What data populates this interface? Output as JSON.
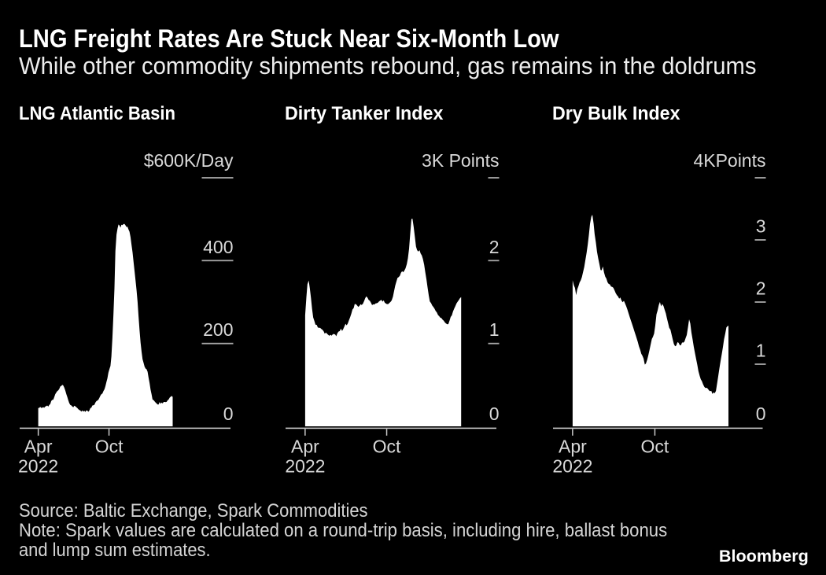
{
  "header": {
    "title": "LNG Freight Rates Are Stuck Near Six-Month Low",
    "subtitle": "While other commodity shipments rebound, gas remains in the doldrums"
  },
  "footer": {
    "source": "Source: Baltic Exchange, Spark Commodities",
    "note_line1": "Note: Spark values are calculated on a round-trip basis, including hire, ballast bonus",
    "note_line2": "and lump sum estimates.",
    "brand": "Bloomberg"
  },
  "colors": {
    "background": "#000000",
    "area_fill": "#ffffff",
    "title": "#ffffff",
    "subtitle": "#ededed",
    "panel_title": "#ffffff",
    "axis_label": "#d9d9d9",
    "axis_line": "#c9c9c9",
    "tick_dash": "#a8a8a8",
    "footer_text": "#d4d4d4",
    "brand_text": "#ffffff"
  },
  "chart_data": [
    {
      "type": "area",
      "title": "LNG Atlantic Basin",
      "unit_label": "$600K/Day",
      "ylabel": "$K/Day",
      "ylim": [
        0,
        600
      ],
      "yticks": [
        {
          "value": 600,
          "label": "$600K/Day",
          "is_unit": true
        },
        {
          "value": 400,
          "label": "400"
        },
        {
          "value": 200,
          "label": "200"
        },
        {
          "value": 0,
          "label": "0"
        }
      ],
      "xticks": [
        {
          "month": 0,
          "lines": [
            "Apr",
            "2022"
          ]
        },
        {
          "month": 6,
          "lines": [
            "Oct"
          ]
        }
      ],
      "x_unit": "months since Apr 2022",
      "x": [
        0,
        0.09,
        0.17,
        0.26,
        0.34,
        0.43,
        0.51,
        0.59,
        0.68,
        0.76,
        0.85,
        0.93,
        1.02,
        1.1,
        1.19,
        1.27,
        1.36,
        1.44,
        1.53,
        1.61,
        1.7,
        1.78,
        1.87,
        1.95,
        2.04,
        2.12,
        2.21,
        2.29,
        2.38,
        2.46,
        2.55,
        2.63,
        2.72,
        2.8,
        2.89,
        2.97,
        3.06,
        3.14,
        3.23,
        3.31,
        3.4,
        3.48,
        3.57,
        3.65,
        3.74,
        3.82,
        3.91,
        3.99,
        4.08,
        4.16,
        4.25,
        4.33,
        4.42,
        4.5,
        4.59,
        4.67,
        4.76,
        4.84,
        4.93,
        5.01,
        5.1,
        5.18,
        5.27,
        5.35,
        5.44,
        5.52,
        5.61,
        5.69,
        5.78,
        5.86,
        5.95,
        6.03,
        6.12,
        6.2,
        6.29,
        6.37,
        6.46,
        6.54,
        6.63,
        6.71,
        6.8,
        6.88,
        6.97,
        7.05,
        7.14,
        7.22,
        7.31,
        7.39,
        7.48,
        7.56,
        7.65,
        7.73,
        7.82,
        7.9,
        7.99,
        8.07,
        8.16,
        8.24,
        8.33,
        8.42,
        8.5,
        8.59,
        8.67,
        8.76,
        8.84,
        8.93,
        9.01,
        9.1,
        9.18,
        9.27,
        9.35,
        9.44,
        9.52,
        9.61,
        9.69,
        9.78,
        9.86,
        9.95,
        10.03,
        10.12,
        10.2,
        10.29,
        10.37,
        10.46,
        10.54,
        10.63,
        10.71,
        10.8,
        10.88,
        10.97,
        11.05,
        11.14,
        11.22,
        11.31,
        11.39
      ],
      "values": [
        44.0,
        44.6,
        47.1,
        44.5,
        45.0,
        46.2,
        44.9,
        47.7,
        49.0,
        50.3,
        47.7,
        51.4,
        54.0,
        60.9,
        63.9,
        63.9,
        70.7,
        77.3,
        81.5,
        85.1,
        87.0,
        90.2,
        96.2,
        97.2,
        100.2,
        98.8,
        93.0,
        86.4,
        77.8,
        71.2,
        62.9,
        56.2,
        51.4,
        50.5,
        47.7,
        46.2,
        49.9,
        48.4,
        46.0,
        44.3,
        41.3,
        39.5,
        38.1,
        35.3,
        38.4,
        35.5,
        37.5,
        34.5,
        38.4,
        37.9,
        35.2,
        38.1,
        44.0,
        44.9,
        50.3,
        50.9,
        52.1,
        57.2,
        60.8,
        62.0,
        64.4,
        68.6,
        74.3,
        77.3,
        79.1,
        84.7,
        89.5,
        96.8,
        107.1,
        115.6,
        129.6,
        138.0,
        145.7,
        168.7,
        213.7,
        270.3,
        334.1,
        422.9,
        462.7,
        476.4,
        487.3,
        485.1,
        479.6,
        486.6,
        485.5,
        488.1,
        488.4,
        485.5,
        481.2,
        482.0,
        475.5,
        470.0,
        457.0,
        439.3,
        419.8,
        398.2,
        375.3,
        353.9,
        328.2,
        300.2,
        265.8,
        231.9,
        202.0,
        179.6,
        162.1,
        153.3,
        144.1,
        139.4,
        137.8,
        132.0,
        118.3,
        103.7,
        88.5,
        77.0,
        64.7,
        63.1,
        60.4,
        57.6,
        55.3,
        52.7,
        52.6,
        58.6,
        54.5,
        57.6,
        55.2,
        58.8,
        58.8,
        58.4,
        59.1,
        63.0,
        64.5,
        69.3,
        71.4,
        73.3,
        71
      ]
    },
    {
      "type": "area",
      "title": "Dirty Tanker Index",
      "unit_label": "3K Points",
      "ylabel": "K Points",
      "ylim": [
        0,
        3
      ],
      "yticks": [
        {
          "value": 3,
          "label": "3K Points",
          "is_unit": true
        },
        {
          "value": 2,
          "label": "2"
        },
        {
          "value": 1,
          "label": "1"
        },
        {
          "value": 0,
          "label": "0"
        }
      ],
      "xticks": [
        {
          "month": 0,
          "lines": [
            "Apr",
            "2022"
          ]
        },
        {
          "month": 6,
          "lines": [
            "Oct"
          ]
        }
      ],
      "x_unit": "months since Apr 2022",
      "x": [
        0,
        0.09,
        0.17,
        0.26,
        0.34,
        0.43,
        0.51,
        0.59,
        0.68,
        0.76,
        0.85,
        0.93,
        1.02,
        1.1,
        1.19,
        1.27,
        1.36,
        1.44,
        1.53,
        1.61,
        1.7,
        1.78,
        1.87,
        1.95,
        2.04,
        2.12,
        2.21,
        2.29,
        2.38,
        2.46,
        2.55,
        2.63,
        2.72,
        2.8,
        2.89,
        2.97,
        3.06,
        3.14,
        3.23,
        3.31,
        3.4,
        3.48,
        3.57,
        3.65,
        3.74,
        3.82,
        3.91,
        3.99,
        4.08,
        4.16,
        4.25,
        4.33,
        4.42,
        4.5,
        4.59,
        4.67,
        4.76,
        4.84,
        4.93,
        5.01,
        5.1,
        5.18,
        5.27,
        5.35,
        5.44,
        5.52,
        5.61,
        5.69,
        5.78,
        5.86,
        5.95,
        6.03,
        6.12,
        6.2,
        6.29,
        6.37,
        6.46,
        6.54,
        6.63,
        6.71,
        6.8,
        6.88,
        6.97,
        7.05,
        7.14,
        7.22,
        7.31,
        7.39,
        7.48,
        7.56,
        7.65,
        7.73,
        7.82,
        7.9,
        7.99,
        8.07,
        8.16,
        8.24,
        8.33,
        8.42,
        8.5,
        8.59,
        8.67,
        8.76,
        8.84,
        8.93,
        9.01,
        9.1,
        9.18,
        9.27,
        9.35,
        9.44,
        9.52,
        9.61,
        9.69,
        9.78,
        9.86,
        9.95,
        10.03,
        10.12,
        10.2,
        10.29,
        10.37,
        10.46,
        10.54,
        10.63,
        10.71,
        10.8,
        10.88,
        10.97,
        11.05,
        11.14,
        11.22,
        11.31,
        11.39,
        11.48,
        11.48
      ],
      "values": [
        1.34,
        1.562,
        1.715,
        1.76,
        1.668,
        1.55,
        1.418,
        1.315,
        1.272,
        1.227,
        1.225,
        1.193,
        1.188,
        1.19,
        1.175,
        1.167,
        1.148,
        1.117,
        1.133,
        1.118,
        1.103,
        1.093,
        1.105,
        1.095,
        1.112,
        1.115,
        1.108,
        1.087,
        1.126,
        1.144,
        1.15,
        1.18,
        1.151,
        1.173,
        1.206,
        1.238,
        1.219,
        1.242,
        1.283,
        1.318,
        1.36,
        1.409,
        1.428,
        1.476,
        1.473,
        1.46,
        1.442,
        1.453,
        1.473,
        1.464,
        1.479,
        1.509,
        1.545,
        1.568,
        1.552,
        1.526,
        1.515,
        1.492,
        1.463,
        1.472,
        1.471,
        1.483,
        1.486,
        1.491,
        1.507,
        1.516,
        1.528,
        1.505,
        1.52,
        1.492,
        1.481,
        1.475,
        1.476,
        1.49,
        1.503,
        1.52,
        1.565,
        1.625,
        1.698,
        1.744,
        1.792,
        1.8,
        1.817,
        1.853,
        1.873,
        1.86,
        1.881,
        1.907,
        1.957,
        2.027,
        2.144,
        2.316,
        2.502,
        2.507,
        2.404,
        2.293,
        2.17,
        2.127,
        2.109,
        2.127,
        2.087,
        2.063,
        2.019,
        1.95,
        1.861,
        1.773,
        1.678,
        1.576,
        1.508,
        1.487,
        1.458,
        1.44,
        1.42,
        1.391,
        1.377,
        1.343,
        1.33,
        1.311,
        1.306,
        1.286,
        1.274,
        1.253,
        1.242,
        1.232,
        1.233,
        1.277,
        1.321,
        1.34,
        1.385,
        1.421,
        1.448,
        1.483,
        1.504,
        1.524,
        1.546,
        1.561,
        1.57
      ]
    },
    {
      "type": "area",
      "title": "Dry Bulk Index",
      "unit_label": "4KPoints",
      "ylabel": "K Points",
      "ylim": [
        0,
        4
      ],
      "yticks": [
        {
          "value": 4,
          "label": "4KPoints",
          "is_unit": true
        },
        {
          "value": 3,
          "label": "3"
        },
        {
          "value": 2,
          "label": "2"
        },
        {
          "value": 1,
          "label": "1"
        },
        {
          "value": 0,
          "label": "0"
        }
      ],
      "xticks": [
        {
          "month": 0,
          "lines": [
            "Apr",
            "2022"
          ]
        },
        {
          "month": 6,
          "lines": [
            "Oct"
          ]
        }
      ],
      "x_unit": "months since Apr 2022",
      "x": [
        0,
        0.09,
        0.17,
        0.26,
        0.34,
        0.43,
        0.51,
        0.59,
        0.68,
        0.76,
        0.85,
        0.93,
        1.02,
        1.1,
        1.19,
        1.27,
        1.36,
        1.44,
        1.53,
        1.61,
        1.7,
        1.78,
        1.87,
        1.95,
        2.04,
        2.12,
        2.21,
        2.29,
        2.38,
        2.46,
        2.55,
        2.63,
        2.72,
        2.8,
        2.89,
        2.97,
        3.06,
        3.14,
        3.23,
        3.31,
        3.4,
        3.48,
        3.57,
        3.65,
        3.74,
        3.82,
        3.91,
        3.99,
        4.08,
        4.16,
        4.25,
        4.33,
        4.42,
        4.5,
        4.59,
        4.67,
        4.76,
        4.84,
        4.93,
        5.01,
        5.1,
        5.18,
        5.27,
        5.35,
        5.44,
        5.52,
        5.61,
        5.69,
        5.78,
        5.86,
        5.95,
        6.03,
        6.12,
        6.2,
        6.29,
        6.37,
        6.46,
        6.54,
        6.63,
        6.71,
        6.8,
        6.88,
        6.97,
        7.05,
        7.14,
        7.22,
        7.31,
        7.39,
        7.48,
        7.56,
        7.65,
        7.73,
        7.82,
        7.9,
        7.99,
        8.07,
        8.16,
        8.24,
        8.33,
        8.42,
        8.5,
        8.59,
        8.67,
        8.76,
        8.84,
        8.93,
        9.01,
        9.1,
        9.18,
        9.27,
        9.35,
        9.44,
        9.52,
        9.61,
        9.69,
        9.78,
        9.86,
        9.95,
        10.03,
        10.12,
        10.2,
        10.29,
        10.37,
        10.46,
        10.54,
        10.63,
        10.71,
        10.8,
        10.88,
        10.97,
        11.05,
        11.14,
        11.22,
        11.31,
        11.37
      ],
      "values": [
        2.35,
        2.268,
        2.228,
        2.112,
        2.205,
        2.26,
        2.316,
        2.348,
        2.402,
        2.479,
        2.565,
        2.673,
        2.795,
        2.922,
        3.082,
        3.258,
        3.369,
        3.406,
        3.261,
        3.093,
        2.956,
        2.81,
        2.7,
        2.614,
        2.516,
        2.511,
        2.573,
        2.478,
        2.408,
        2.379,
        2.318,
        2.293,
        2.284,
        2.249,
        2.243,
        2.231,
        2.189,
        2.146,
        2.11,
        2.092,
        2.055,
        2.075,
        2.024,
        1.997,
        2.02,
        1.982,
        1.933,
        1.885,
        1.819,
        1.763,
        1.705,
        1.653,
        1.591,
        1.535,
        1.474,
        1.418,
        1.356,
        1.289,
        1.232,
        1.167,
        1.134,
        1.09,
        0.994,
        1.012,
        1.071,
        1.142,
        1.226,
        1.31,
        1.405,
        1.44,
        1.492,
        1.618,
        1.802,
        1.862,
        1.954,
        2.001,
        1.93,
        1.969,
        1.937,
        1.88,
        1.818,
        1.744,
        1.662,
        1.586,
        1.553,
        1.477,
        1.398,
        1.327,
        1.287,
        1.299,
        1.354,
        1.346,
        1.307,
        1.304,
        1.35,
        1.347,
        1.362,
        1.414,
        1.47,
        1.597,
        1.721,
        1.654,
        1.512,
        1.393,
        1.281,
        1.175,
        1.084,
        0.99,
        0.89,
        0.813,
        0.758,
        0.725,
        0.677,
        0.636,
        0.618,
        0.62,
        0.606,
        0.579,
        0.564,
        0.571,
        0.523,
        0.545,
        0.532,
        0.569,
        0.684,
        0.815,
        0.933,
        1.052,
        1.155,
        1.277,
        1.4,
        1.498,
        1.592,
        1.613,
        1.62
      ]
    }
  ]
}
